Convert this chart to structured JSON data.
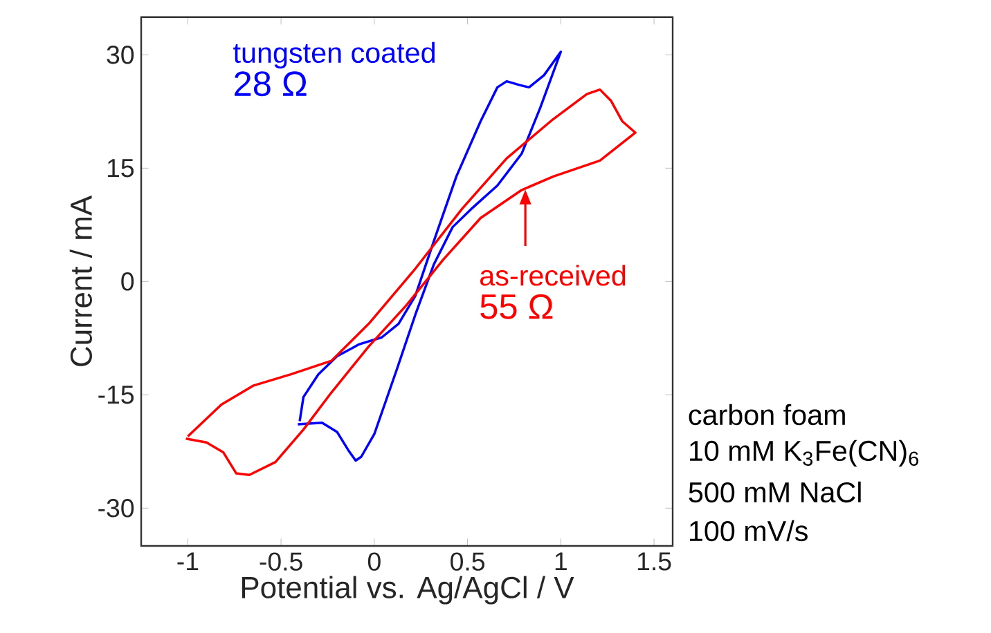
{
  "chart_data": {
    "type": "line",
    "xlabel": "Potential vs. Ag/AgCl / V",
    "ylabel": "Current / mA",
    "xlim": [
      -1.25,
      1.6
    ],
    "ylim": [
      -35,
      35
    ],
    "xticks": [
      -1,
      -0.5,
      0,
      0.5,
      1,
      1.5
    ],
    "yticks": [
      -30,
      -15,
      0,
      15,
      30
    ],
    "grid": false,
    "legend": false,
    "marker": "none",
    "line_style": "solid",
    "series": [
      {
        "color": "#0000ff",
        "x": [
          -0.41,
          -0.28,
          -0.2,
          -0.14,
          -0.1,
          -0.07,
          0,
          0.12,
          0.22,
          0.32,
          0.42,
          0.52,
          0.66,
          0.79,
          0.89,
          1.0,
          0.91,
          0.83,
          0.78,
          0.71,
          0.66,
          0.57,
          0.44,
          0.32,
          0.22,
          0.13,
          0.04,
          -0.08,
          -0.2,
          -0.3,
          -0.38,
          -0.4
        ],
        "values": [
          -18.9,
          -18.7,
          -19.9,
          -22.3,
          -23.7,
          -23.2,
          -20.2,
          -11.7,
          -4.4,
          2.3,
          7.2,
          9.6,
          12.7,
          16.9,
          23,
          30.4,
          27.3,
          25.7,
          26,
          26.5,
          25.7,
          21.2,
          13.9,
          5.4,
          -1.9,
          -5.6,
          -7.4,
          -8.3,
          -9.9,
          -12.3,
          -15.3,
          -18.5
        ]
      },
      {
        "color": "#ff0000",
        "x": [
          -1.01,
          -0.9,
          -0.81,
          -0.74,
          -0.67,
          -0.53,
          -0.38,
          -0.23,
          -0.03,
          0.17,
          0.37,
          0.57,
          0.79,
          0.96,
          1.21,
          1.4,
          1.33,
          1.27,
          1.21,
          1.14,
          0.96,
          0.71,
          0.47,
          0.22,
          -0.03,
          -0.23,
          -0.45,
          -0.65,
          -0.82,
          -1.0
        ],
        "values": [
          -20.8,
          -21.3,
          -22.6,
          -25.4,
          -25.6,
          -23.9,
          -19.6,
          -14.7,
          -8.6,
          -3.2,
          2.9,
          8.4,
          12.1,
          13.9,
          16,
          19.7,
          21.2,
          23.9,
          25.4,
          24.8,
          21.5,
          16.3,
          9.6,
          1.7,
          -5.6,
          -10.5,
          -12.3,
          -13.8,
          -16.3,
          -20.5
        ]
      }
    ],
    "annotations": [
      "tungsten coated",
      "28 Ω",
      {
        "text": "as-received",
        "x": 0.81,
        "y": 12.4
      },
      "55 Ω",
      "carbon foam",
      "10 mM K$_{3}$Fe(CN)$_{6}$",
      "500 mM NaCl",
      "100 mV/s"
    ]
  }
}
